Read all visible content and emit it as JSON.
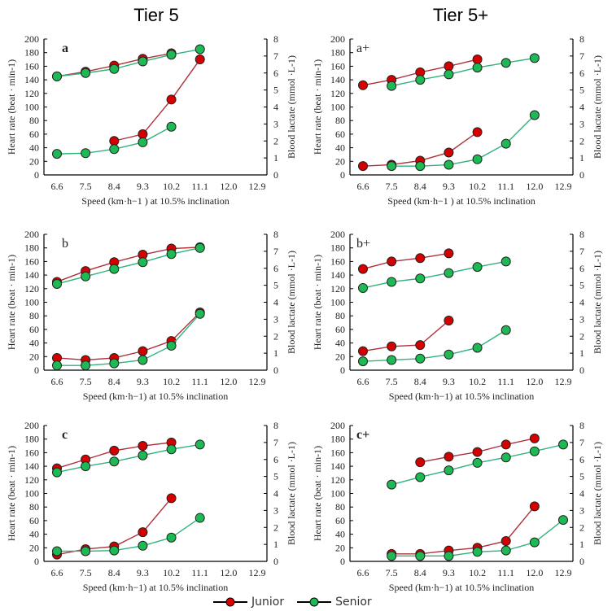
{
  "column_titles": [
    "Tier 5",
    "Tier 5+"
  ],
  "legend": [
    {
      "name": "Junior",
      "color": "#d40000"
    },
    {
      "name": "Senior",
      "color": "#1db954"
    }
  ],
  "colors": {
    "junior_marker": "#d40000",
    "junior_line": "#b0303a",
    "senior_marker": "#1db954",
    "senior_line": "#2fb37a"
  },
  "chart_data": [
    {
      "id": "a",
      "panel_label": "a",
      "label_bold": true,
      "tier": "Tier 5",
      "type": "line",
      "x_categories": [
        "6.6",
        "7.5",
        "8.4",
        "9.3",
        "10.2",
        "11.1",
        "12.0",
        "12.9"
      ],
      "xlabel": "Speed (km·h−1 ) at 10.5% inclination",
      "ylabel_left": "Heart rate (beat · min-1)",
      "ylim_left": [
        0,
        200
      ],
      "yticks_left": [
        0,
        20,
        40,
        60,
        80,
        100,
        120,
        140,
        160,
        180,
        200
      ],
      "ylabel_right": "Blood lactate (mmol ·L-1)",
      "ylim_right": [
        0,
        8
      ],
      "yticks_right": [
        0,
        1,
        2,
        3,
        4,
        5,
        6,
        7,
        8
      ],
      "series": [
        {
          "name": "Junior",
          "metric": "heart_rate",
          "axis": "left",
          "x": [
            "6.6",
            "7.5",
            "8.4",
            "9.3",
            "10.2"
          ],
          "values": [
            145,
            152,
            161,
            171,
            179
          ]
        },
        {
          "name": "Senior",
          "metric": "heart_rate",
          "axis": "left",
          "x": [
            "6.6",
            "7.5",
            "8.4",
            "9.3",
            "10.2",
            "11.1"
          ],
          "values": [
            145,
            150,
            156,
            167,
            177,
            185
          ]
        },
        {
          "name": "Junior",
          "metric": "blood_lactate",
          "axis": "right",
          "x": [
            "8.4",
            "9.3",
            "10.2",
            "11.1"
          ],
          "values": [
            2.0,
            2.4,
            4.44,
            6.8
          ]
        },
        {
          "name": "Senior",
          "metric": "blood_lactate",
          "axis": "right",
          "x": [
            "6.6",
            "7.5",
            "8.4",
            "9.3",
            "10.2"
          ],
          "values": [
            1.24,
            1.28,
            1.52,
            1.92,
            2.84
          ]
        }
      ]
    },
    {
      "id": "a_plus",
      "panel_label": "a+",
      "label_bold": false,
      "tier": "Tier 5+",
      "type": "line",
      "x_categories": [
        "6.6",
        "7.5",
        "8.4",
        "9.3",
        "10.2",
        "11.1",
        "12.0",
        "12.9"
      ],
      "xlabel": "Speed (km·h−1 ) at 10.5% inclination",
      "ylabel_left": "Heart rate (beat · min-1)",
      "ylim_left": [
        0,
        200
      ],
      "yticks_left": [
        0,
        20,
        40,
        60,
        80,
        100,
        120,
        140,
        160,
        180,
        200
      ],
      "ylabel_right": "Blood lactate (mmol ·L-1)",
      "ylim_right": [
        0,
        8
      ],
      "yticks_right": [
        0,
        1,
        2,
        3,
        4,
        5,
        6,
        7,
        8
      ],
      "series": [
        {
          "name": "Junior",
          "metric": "heart_rate",
          "axis": "left",
          "x": [
            "6.6",
            "7.5",
            "8.4",
            "9.3",
            "10.2"
          ],
          "values": [
            132,
            140,
            151,
            160,
            170
          ]
        },
        {
          "name": "Senior",
          "metric": "heart_rate",
          "axis": "left",
          "x": [
            "7.5",
            "8.4",
            "9.3",
            "10.2",
            "11.1",
            "12.0"
          ],
          "values": [
            131,
            140,
            148,
            158,
            165,
            172
          ]
        },
        {
          "name": "Junior",
          "metric": "blood_lactate",
          "axis": "right",
          "x": [
            "6.6",
            "7.5",
            "8.4",
            "9.3",
            "10.2"
          ],
          "values": [
            0.52,
            0.6,
            0.84,
            1.32,
            2.52
          ]
        },
        {
          "name": "Senior",
          "metric": "blood_lactate",
          "axis": "right",
          "x": [
            "7.5",
            "8.4",
            "9.3",
            "10.2",
            "11.1",
            "12.0"
          ],
          "values": [
            0.52,
            0.52,
            0.6,
            0.92,
            1.84,
            3.52
          ]
        }
      ]
    },
    {
      "id": "b",
      "panel_label": "b",
      "label_bold": false,
      "tier": "Tier 5",
      "type": "line",
      "x_categories": [
        "6.6",
        "7.5",
        "8.4",
        "9.3",
        "10.2",
        "11.1",
        "12.0",
        "12.9"
      ],
      "xlabel": "Speed (km·h−1) at 10.5% inclination",
      "ylabel_left": "Heart rate (beat · min-1)",
      "ylim_left": [
        0,
        200
      ],
      "yticks_left": [
        0,
        20,
        40,
        60,
        80,
        100,
        120,
        140,
        160,
        180,
        200
      ],
      "ylabel_right": "Blood lactate (mmol ·L-1)",
      "ylim_right": [
        0,
        8
      ],
      "yticks_right": [
        0,
        1,
        2,
        3,
        4,
        5,
        6,
        7,
        8
      ],
      "series": [
        {
          "name": "Junior",
          "metric": "heart_rate",
          "axis": "left",
          "x": [
            "6.6",
            "7.5",
            "8.4",
            "9.3",
            "10.2",
            "11.1"
          ],
          "values": [
            130,
            146,
            159,
            170,
            179,
            181
          ]
        },
        {
          "name": "Senior",
          "metric": "heart_rate",
          "axis": "left",
          "x": [
            "6.6",
            "7.5",
            "8.4",
            "9.3",
            "10.2",
            "11.1"
          ],
          "values": [
            127,
            138,
            149,
            159,
            171,
            180
          ]
        },
        {
          "name": "Junior",
          "metric": "blood_lactate",
          "axis": "right",
          "x": [
            "6.6",
            "7.5",
            "8.4",
            "9.3",
            "10.2",
            "11.1"
          ],
          "values": [
            0.72,
            0.6,
            0.72,
            1.12,
            1.72,
            3.4
          ]
        },
        {
          "name": "Senior",
          "metric": "blood_lactate",
          "axis": "right",
          "x": [
            "6.6",
            "7.5",
            "8.4",
            "9.3",
            "10.2",
            "11.1"
          ],
          "values": [
            0.28,
            0.28,
            0.4,
            0.6,
            1.44,
            3.32
          ]
        }
      ]
    },
    {
      "id": "b_plus",
      "panel_label": "b+",
      "label_bold": false,
      "tier": "Tier 5+",
      "type": "line",
      "x_categories": [
        "6.6",
        "7.5",
        "8.4",
        "9.3",
        "10.2",
        "11.1",
        "12.0",
        "12.9"
      ],
      "xlabel": "Speed (km·h−1) at 10.5% inclination",
      "ylabel_left": "Heart rate (beat · min-1)",
      "ylim_left": [
        0,
        200
      ],
      "yticks_left": [
        0,
        20,
        40,
        60,
        80,
        100,
        120,
        140,
        160,
        180,
        200
      ],
      "ylabel_right": "Blood lactate (mmol ·L-1)",
      "ylim_right": [
        0,
        8
      ],
      "yticks_right": [
        0,
        1,
        2,
        3,
        4,
        5,
        6,
        7,
        8
      ],
      "series": [
        {
          "name": "Junior",
          "metric": "heart_rate",
          "axis": "left",
          "x": [
            "6.6",
            "7.5",
            "8.4",
            "9.3"
          ],
          "values": [
            149,
            160,
            165,
            172
          ]
        },
        {
          "name": "Senior",
          "metric": "heart_rate",
          "axis": "left",
          "x": [
            "6.6",
            "7.5",
            "8.4",
            "9.3",
            "10.2",
            "11.1"
          ],
          "values": [
            121,
            130,
            135,
            143,
            152,
            160
          ]
        },
        {
          "name": "Junior",
          "metric": "blood_lactate",
          "axis": "right",
          "x": [
            "6.6",
            "7.5",
            "8.4",
            "9.3"
          ],
          "values": [
            1.12,
            1.4,
            1.48,
            2.92
          ]
        },
        {
          "name": "Senior",
          "metric": "blood_lactate",
          "axis": "right",
          "x": [
            "6.6",
            "7.5",
            "8.4",
            "9.3",
            "10.2",
            "11.1"
          ],
          "values": [
            0.52,
            0.6,
            0.68,
            0.92,
            1.32,
            2.36
          ]
        }
      ]
    },
    {
      "id": "c",
      "panel_label": "c",
      "label_bold": true,
      "tier": "Tier 5",
      "type": "line",
      "x_categories": [
        "6.6",
        "7.5",
        "8.4",
        "9.3",
        "10.2",
        "11.1",
        "12.0",
        "12.9"
      ],
      "xlabel": "Speed (km·h−1) at 10.5% inclination",
      "ylabel_left": "Heart rate (beat · min-1)",
      "ylim_left": [
        0,
        200
      ],
      "yticks_left": [
        0,
        20,
        40,
        60,
        80,
        100,
        120,
        140,
        160,
        180,
        200
      ],
      "ylabel_right": "Blood lactate (mmol ·L-1)",
      "ylim_right": [
        0,
        8
      ],
      "yticks_right": [
        0,
        1,
        2,
        3,
        4,
        5,
        6,
        7,
        8
      ],
      "series": [
        {
          "name": "Junior",
          "metric": "heart_rate",
          "axis": "left",
          "x": [
            "6.6",
            "7.5",
            "8.4",
            "9.3",
            "10.2"
          ],
          "values": [
            137,
            150,
            163,
            170,
            175
          ]
        },
        {
          "name": "Senior",
          "metric": "heart_rate",
          "axis": "left",
          "x": [
            "6.6",
            "7.5",
            "8.4",
            "9.3",
            "10.2",
            "11.1"
          ],
          "values": [
            131,
            140,
            147,
            156,
            165,
            172
          ]
        },
        {
          "name": "Junior",
          "metric": "blood_lactate",
          "axis": "right",
          "x": [
            "6.6",
            "7.5",
            "8.4",
            "9.3",
            "10.2"
          ],
          "values": [
            0.4,
            0.72,
            0.88,
            1.72,
            3.72
          ]
        },
        {
          "name": "Senior",
          "metric": "blood_lactate",
          "axis": "right",
          "x": [
            "6.6",
            "7.5",
            "8.4",
            "9.3",
            "10.2",
            "11.1"
          ],
          "values": [
            0.6,
            0.6,
            0.64,
            0.92,
            1.4,
            2.56
          ]
        }
      ]
    },
    {
      "id": "c_plus",
      "panel_label": "c+",
      "label_bold": true,
      "tier": "Tier 5+",
      "type": "line",
      "x_categories": [
        "6.6",
        "7.5",
        "8.4",
        "9.3",
        "10.2",
        "11.1",
        "12.0",
        "12.9"
      ],
      "xlabel": "Speed (km·h−1) at 10.5% inclination",
      "ylabel_left": "Heart rate (beat · min-1)",
      "ylim_left": [
        0,
        200
      ],
      "yticks_left": [
        0,
        20,
        40,
        60,
        80,
        100,
        120,
        140,
        160,
        180,
        200
      ],
      "ylabel_right": "Blood lactate (mmol ·L-1)",
      "ylim_right": [
        0,
        8
      ],
      "yticks_right": [
        0,
        1,
        2,
        3,
        4,
        5,
        6,
        7,
        8
      ],
      "series": [
        {
          "name": "Junior",
          "metric": "heart_rate",
          "axis": "left",
          "x": [
            "8.4",
            "9.3",
            "10.2",
            "11.1",
            "12.0"
          ],
          "values": [
            146,
            154,
            161,
            172,
            181
          ]
        },
        {
          "name": "Senior",
          "metric": "heart_rate",
          "axis": "left",
          "x": [
            "7.5",
            "8.4",
            "9.3",
            "10.2",
            "11.1",
            "12.0",
            "12.9"
          ],
          "values": [
            113,
            124,
            134,
            145,
            153,
            162,
            172
          ]
        },
        {
          "name": "Junior",
          "metric": "blood_lactate",
          "axis": "right",
          "x": [
            "7.5",
            "8.4",
            "9.3",
            "10.2",
            "11.1",
            "12.0"
          ],
          "values": [
            0.44,
            0.44,
            0.64,
            0.8,
            1.2,
            3.24
          ]
        },
        {
          "name": "Senior",
          "metric": "blood_lactate",
          "axis": "right",
          "x": [
            "7.5",
            "8.4",
            "9.3",
            "10.2",
            "11.1",
            "12.0",
            "12.9"
          ],
          "values": [
            0.32,
            0.32,
            0.32,
            0.56,
            0.64,
            1.12,
            2.44
          ]
        }
      ]
    }
  ]
}
